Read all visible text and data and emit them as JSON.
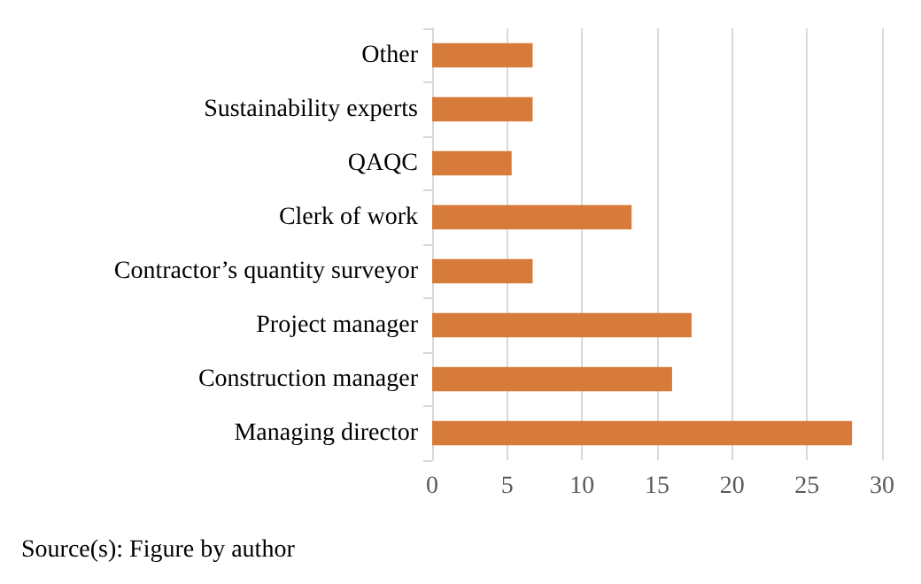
{
  "chart_data": {
    "type": "bar",
    "orientation": "horizontal",
    "categories": [
      "Other",
      "Sustainability experts",
      "QAQC",
      "Clerk of work",
      "Contractor’s quantity surveyor",
      "Project manager",
      "Construction manager",
      "Managing director"
    ],
    "values": [
      6.7,
      6.7,
      5.3,
      13.3,
      6.7,
      17.3,
      16,
      28
    ],
    "color": "#d77b3b",
    "xlim": [
      0,
      30
    ],
    "xticks": [
      0,
      5,
      10,
      15,
      20,
      25,
      30
    ],
    "grid": "x",
    "annotations": [
      "Source(s): Figure by author"
    ]
  }
}
